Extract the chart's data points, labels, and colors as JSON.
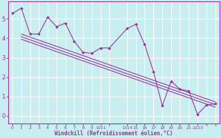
{
  "xlabel": "Windchill (Refroidissement éolien,°C)",
  "bg_color": "#c8eef0",
  "line_color": "#993399",
  "grid_color": "#b0dde0",
  "ylim": [
    -0.4,
    5.9
  ],
  "xlim": [
    -0.5,
    23.5
  ],
  "yticks": [
    0,
    1,
    2,
    3,
    4,
    5
  ],
  "data_x": [
    0,
    1,
    2,
    3,
    4,
    5,
    6,
    7,
    8,
    9,
    10,
    11,
    13,
    14,
    15,
    16,
    17,
    18,
    19,
    20,
    21,
    22,
    23
  ],
  "data_y": [
    5.28,
    5.55,
    4.22,
    4.22,
    5.1,
    4.6,
    4.78,
    3.85,
    3.28,
    3.22,
    3.5,
    3.5,
    4.5,
    4.72,
    3.68,
    2.28,
    0.52,
    1.78,
    1.38,
    1.28,
    0.08,
    0.55,
    0.62
  ],
  "trend_lines": [
    {
      "x": [
        1,
        23
      ],
      "y": [
        4.22,
        0.72
      ]
    },
    {
      "x": [
        1,
        23
      ],
      "y": [
        4.08,
        0.58
      ]
    },
    {
      "x": [
        1,
        23
      ],
      "y": [
        3.95,
        0.45
      ]
    }
  ],
  "xtick_pos": [
    0,
    1,
    2,
    3,
    4,
    5,
    6,
    7,
    8,
    9,
    10,
    11,
    13,
    14,
    15,
    16,
    17,
    18,
    19,
    20,
    21,
    22,
    23
  ],
  "xtick_lab": [
    "0",
    "1",
    "2",
    "3",
    "4",
    "5",
    "6",
    "7",
    "8",
    "9",
    "1011",
    "",
    "1314",
    "15",
    "16",
    "17",
    "18",
    "19",
    "20",
    "21",
    "2223",
    "",
    ""
  ]
}
